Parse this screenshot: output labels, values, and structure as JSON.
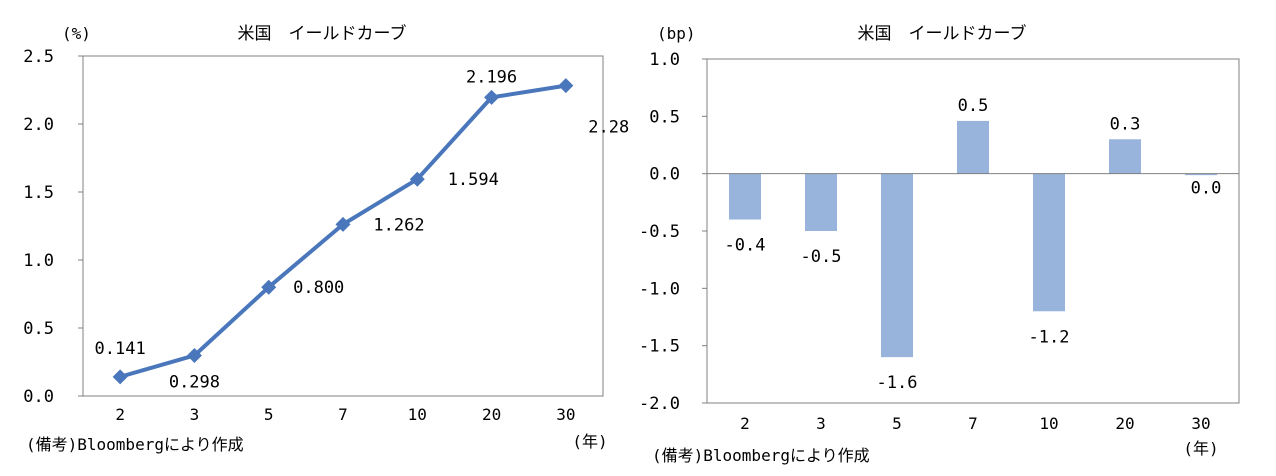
{
  "chart_data": [
    {
      "type": "line",
      "title": "米国　イールドカーブ",
      "ylabel": "(%)",
      "xlabel": "(年)",
      "categories": [
        "2",
        "3",
        "5",
        "7",
        "10",
        "20",
        "30"
      ],
      "values": [
        0.141,
        0.298,
        0.8,
        1.262,
        1.594,
        2.196,
        2.282
      ],
      "data_labels": [
        "0.141",
        "0.298",
        "0.800",
        "1.262",
        "1.594",
        "2.196",
        "2.282"
      ],
      "ylim": [
        0,
        2.5
      ],
      "yticks": [
        "0.0",
        "0.5",
        "1.0",
        "1.5",
        "2.0",
        "2.5"
      ],
      "grid": false,
      "line_color": "#4a77bb",
      "source": "(備考)Bloombergにより作成"
    },
    {
      "type": "bar",
      "title": "米国　イールドカーブ",
      "ylabel": "(bp)",
      "xlabel": "(年)",
      "categories": [
        "2",
        "3",
        "5",
        "7",
        "10",
        "20",
        "30"
      ],
      "values": [
        -0.4,
        -0.5,
        -1.6,
        0.46,
        -1.2,
        0.3,
        0.0
      ],
      "data_labels": [
        "-0.4",
        "-0.5",
        "-1.6",
        "0.5",
        "-1.2",
        "0.3",
        "0.0"
      ],
      "ylim": [
        -2.0,
        1.0
      ],
      "yticks": [
        "-2.0",
        "-1.5",
        "-1.0",
        "-0.5",
        "0.0",
        "0.5",
        "1.0"
      ],
      "grid": false,
      "bar_color": "#98b4dc",
      "source": "(備考)Bloombergにより作成"
    }
  ]
}
